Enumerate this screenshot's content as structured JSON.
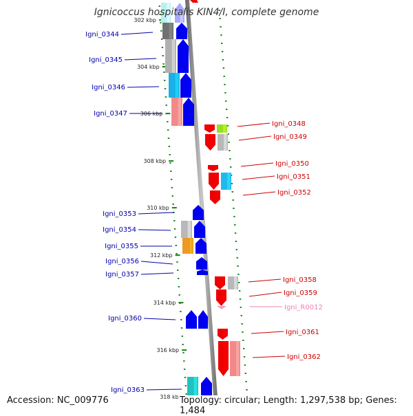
{
  "title": "Ignicoccus hospitalis KIN4/I, complete genome",
  "footer": {
    "accession": "Accession: NC_009776",
    "topology": "Topology: circular; Length: 1,297,538 bp; Genes: 1,484"
  },
  "colors": {
    "forward_strand": "#0000ee",
    "reverse_strand": "#ee0000",
    "forward_label": "#0000aa",
    "reverse_label": "#cc0000",
    "rna_label": "#f080b0",
    "backbone": "#888888",
    "tick": "#228b22"
  },
  "ticks": [
    {
      "label": "302 kbp"
    },
    {
      "label": "304 kbp"
    },
    {
      "label": "306 kbp"
    },
    {
      "label": "308 kbp"
    },
    {
      "label": "310 kbp"
    },
    {
      "label": "312 kbp"
    },
    {
      "label": "314 kbp"
    },
    {
      "label": "316 kbp"
    },
    {
      "label": "318 kbp"
    }
  ],
  "genes": [
    {
      "name": "Igni_0344",
      "strand": "+",
      "color": "#707070"
    },
    {
      "name": "Igni_0345",
      "strand": "+",
      "color": "#b0b0b0"
    },
    {
      "name": "Igni_0346",
      "strand": "+",
      "color": "#1ab0e8"
    },
    {
      "name": "Igni_0347",
      "strand": "+",
      "color": "#f08a8a"
    },
    {
      "name": "Igni_0348",
      "strand": "-",
      "color": "#99dd22"
    },
    {
      "name": "Igni_0349",
      "strand": "-",
      "color": "#b8b8b8"
    },
    {
      "name": "Igni_0350",
      "strand": "-",
      "color": "#ee0000"
    },
    {
      "name": "Igni_0351",
      "strand": "-",
      "color": "#22b8ee"
    },
    {
      "name": "Igni_0352",
      "strand": "-",
      "color": "#ee0000"
    },
    {
      "name": "Igni_0353",
      "strand": "+",
      "color": "#0000ee"
    },
    {
      "name": "Igni_0354",
      "strand": "+",
      "color": "#b8b8b8"
    },
    {
      "name": "Igni_0355",
      "strand": "+",
      "color": "#ee9922"
    },
    {
      "name": "Igni_0356",
      "strand": "+",
      "color": "#0000ee"
    },
    {
      "name": "Igni_0357",
      "strand": "+",
      "color": "#0000ee"
    },
    {
      "name": "Igni_0358",
      "strand": "-",
      "color": "#b8b8b8"
    },
    {
      "name": "Igni_0359",
      "strand": "-",
      "color": "#ee0000"
    },
    {
      "name": "Igni_R0012",
      "strand": "-",
      "color": "#f0a0c8"
    },
    {
      "name": "Igni_0360",
      "strand": "+",
      "color": "#0000ee"
    },
    {
      "name": "Igni_0361",
      "strand": "-",
      "color": "#ee0000"
    },
    {
      "name": "Igni_0362",
      "strand": "-",
      "color": "#f08a8a"
    },
    {
      "name": "Igni_0363",
      "strand": "+",
      "color": "#22c0c0"
    }
  ]
}
